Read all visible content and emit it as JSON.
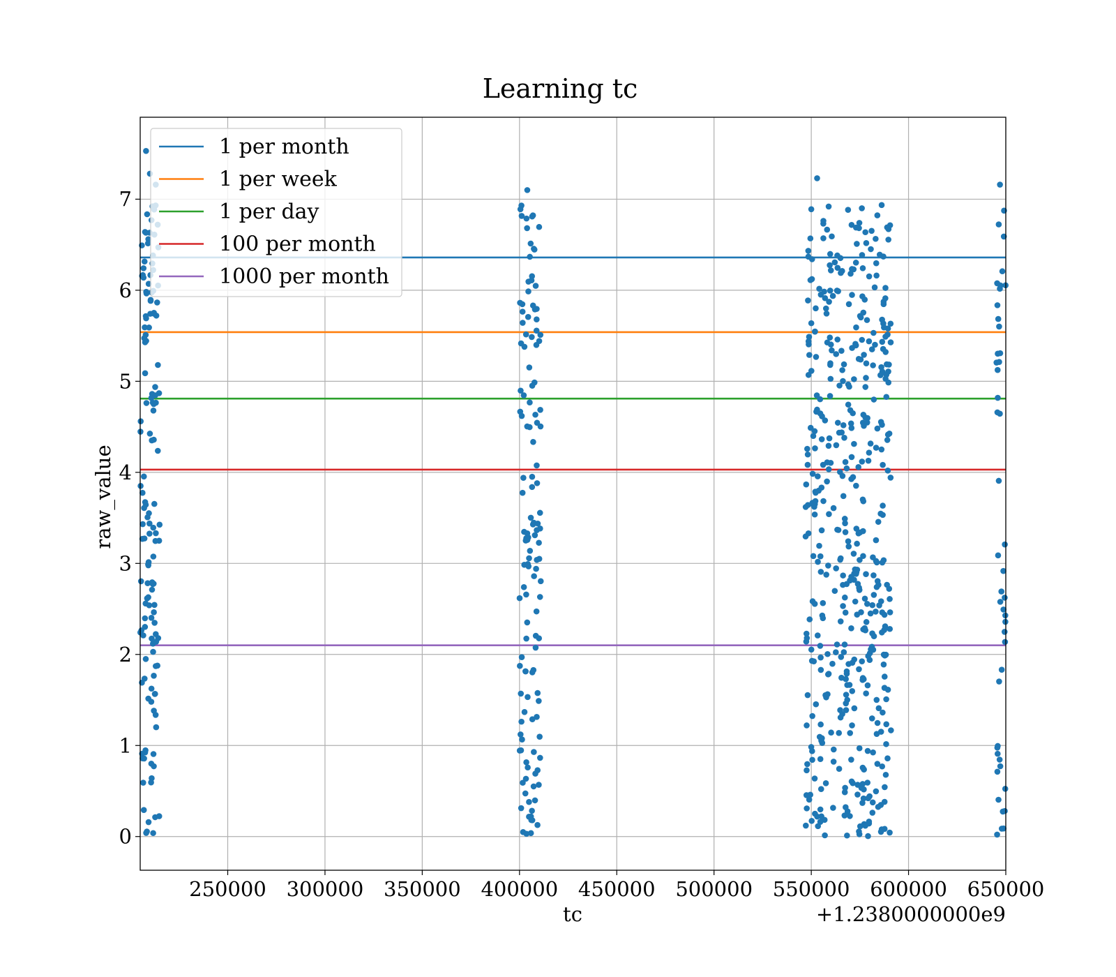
{
  "chart_data": {
    "type": "scatter",
    "title": "Learning tc",
    "xlabel": "tc",
    "ylabel": "raw_value",
    "x_offset_text": "+1.2380000000e9",
    "xlim": [
      205000,
      650000
    ],
    "ylim": [
      -0.37,
      7.9
    ],
    "xticks": [
      250000,
      300000,
      350000,
      400000,
      450000,
      500000,
      550000,
      600000,
      650000
    ],
    "xtick_labels": [
      "250000",
      "300000",
      "350000",
      "400000",
      "450000",
      "500000",
      "550000",
      "600000",
      "650000"
    ],
    "yticks": [
      0,
      1,
      2,
      3,
      4,
      5,
      6,
      7
    ],
    "ytick_labels": [
      "0",
      "1",
      "2",
      "3",
      "4",
      "5",
      "6",
      "7"
    ],
    "grid": true,
    "legend_position": "upper-left",
    "scatter_color": "#1f77b4",
    "hlines": [
      {
        "name": "1 per month",
        "y": 6.36,
        "color": "#1f77b4"
      },
      {
        "name": "1 per week",
        "y": 5.54,
        "color": "#ff7f0e"
      },
      {
        "name": "1 per day",
        "y": 4.81,
        "color": "#2ca02c"
      },
      {
        "name": "100 per month",
        "y": 4.03,
        "color": "#d62728"
      },
      {
        "name": "1000 per month",
        "y": 2.1,
        "color": "#9467bd"
      }
    ],
    "scatter_clusters": [
      {
        "x_min": 205000,
        "x_max": 215000,
        "n": 140
      },
      {
        "x_min": 400000,
        "x_max": 411000,
        "n": 130
      },
      {
        "x_min": 547000,
        "x_max": 591000,
        "n": 480
      },
      {
        "x_min": 645000,
        "x_max": 650000,
        "n": 45
      }
    ],
    "scatter_highlights": [
      {
        "x": 208000,
        "y": 7.53
      },
      {
        "x": 210000,
        "y": 7.28
      },
      {
        "x": 213000,
        "y": 7.16
      },
      {
        "x": 214000,
        "y": 6.72
      },
      {
        "x": 207500,
        "y": 6.64
      },
      {
        "x": 404000,
        "y": 7.1
      },
      {
        "x": 401000,
        "y": 6.93
      },
      {
        "x": 406500,
        "y": 6.81
      },
      {
        "x": 553000,
        "y": 7.23
      },
      {
        "x": 550000,
        "y": 6.89
      },
      {
        "x": 576000,
        "y": 6.9
      },
      {
        "x": 589000,
        "y": 6.69
      },
      {
        "x": 647000,
        "y": 7.16
      },
      {
        "x": 649000,
        "y": 6.59
      }
    ]
  }
}
